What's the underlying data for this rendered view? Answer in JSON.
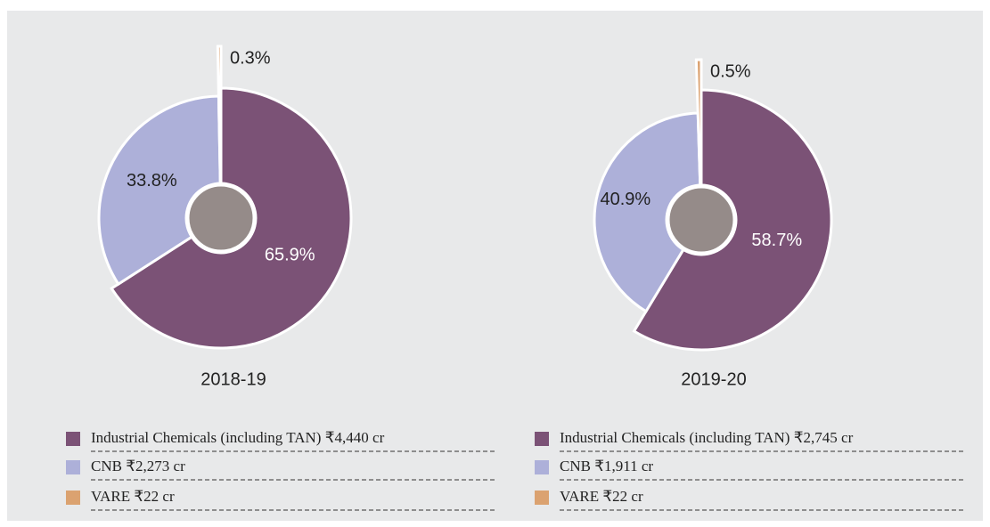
{
  "chart_data": [
    {
      "type": "pie",
      "title": "2018-19",
      "categories": [
        "Industrial Chemicals (including TAN) ₹4,440 cr",
        "CNB ₹2,273 cr",
        "VARE ₹22 cr"
      ],
      "values": [
        65.9,
        33.8,
        0.3
      ],
      "value_labels": [
        "65.9%",
        "33.8%",
        "0.3%"
      ],
      "colors": [
        "#7b5276",
        "#adb0d9",
        "#dba270"
      ]
    },
    {
      "type": "pie",
      "title": "2019-20",
      "categories": [
        "Industrial Chemicals (including TAN) ₹2,745 cr",
        "CNB ₹1,911 cr",
        "VARE ₹22 cr"
      ],
      "values": [
        58.7,
        40.9,
        0.5
      ],
      "value_labels": [
        "58.7%",
        "40.9%",
        "0.5%"
      ],
      "colors": [
        "#7b5276",
        "#adb0d9",
        "#dba270"
      ]
    }
  ]
}
